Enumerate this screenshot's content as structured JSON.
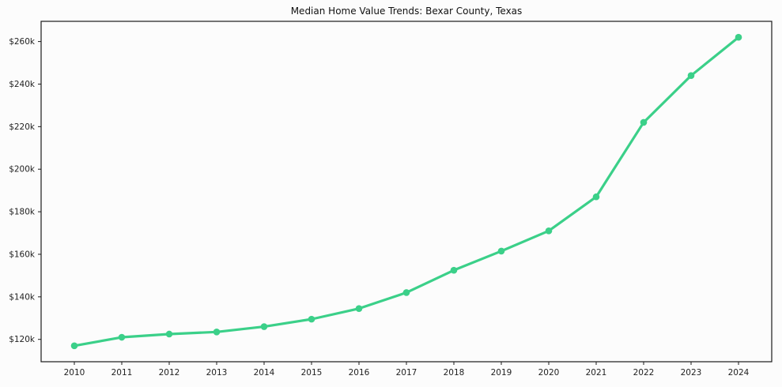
{
  "chart_data": {
    "type": "line",
    "title": "Median Home Value Trends: Bexar County, Texas",
    "x": [
      2010,
      2011,
      2012,
      2013,
      2014,
      2015,
      2016,
      2017,
      2018,
      2019,
      2020,
      2021,
      2022,
      2023,
      2024
    ],
    "series": [
      {
        "name": "Median Home Value",
        "values": [
          117000,
          121000,
          122500,
          123500,
          126000,
          129500,
          134500,
          142000,
          152500,
          161500,
          171000,
          187000,
          222000,
          244000,
          262000
        ]
      }
    ],
    "xlabel": "",
    "ylabel": "",
    "xlim": [
      2009.3,
      2024.7
    ],
    "ylim": [
      109500,
      269500
    ],
    "yticks": [
      120000,
      140000,
      160000,
      180000,
      200000,
      220000,
      240000,
      260000
    ],
    "ytick_labels": [
      "$120k",
      "$140k",
      "$160k",
      "$180k",
      "$200k",
      "$220k",
      "$240k",
      "$260k"
    ],
    "grid": false,
    "legend": "none",
    "line_color": "#3bd089",
    "marker": "circle",
    "axis_color": "#1a1a1a",
    "text_color": "#222222"
  }
}
